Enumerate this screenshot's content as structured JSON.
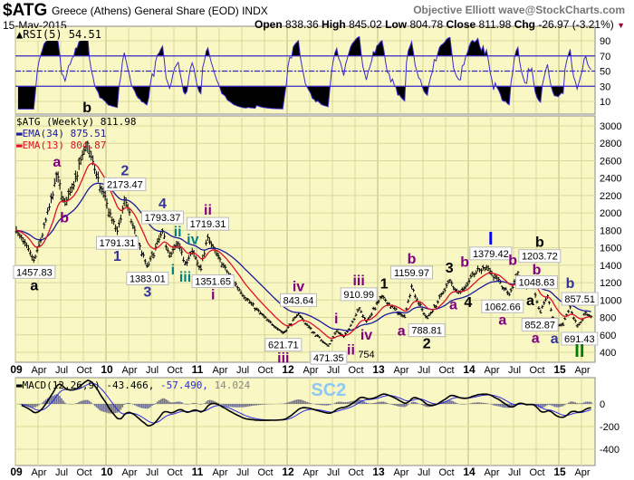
{
  "header": {
    "symbol": "$ATG",
    "name": "Greece (Athens) General Share (EOD) INDX",
    "date": "15-May-2015",
    "credit": "Objective Elliott wave@StockCharts.com",
    "open_label": "Open",
    "open": "838.36",
    "high_label": "High",
    "high": "845.02",
    "low_label": "Low",
    "low": "804.78",
    "close_label": "Close",
    "close": "811.98",
    "chg_label": "Chg",
    "chg": "-26.97 (-3.21%)",
    "down_color": "#990033"
  },
  "colors": {
    "panel_bg": "#f9f7c4",
    "grid": "#d9d89a",
    "year_grid": "#b9b87c",
    "ema34": "#1a1a9a",
    "ema13": "#e0102a",
    "rsi": "#3a2acd",
    "macd": "#000000",
    "signal": "#2a2ae0",
    "hist": "#6e6e90"
  },
  "chart_data": [
    {
      "type": "line",
      "panel": "RSI",
      "legend": "RSI(5) 54.51",
      "yticks": [
        90,
        70,
        50,
        30,
        10
      ],
      "ylim": [
        0,
        100
      ],
      "levels": [
        70,
        50,
        30
      ],
      "last": 54.51
    },
    {
      "type": "ohlc",
      "panel": "price",
      "legend": {
        "title": "$ATG (Weekly) 811.98",
        "ema34": "EMA(34) 875.51",
        "ema13": "EMA(13) 804.87"
      },
      "yticks": [
        3000,
        2800,
        2600,
        2400,
        2200,
        2000,
        1800,
        1600,
        1400,
        1200,
        1000,
        800,
        600,
        400
      ],
      "ylim": [
        330,
        3120
      ],
      "scale": "linear",
      "grid": true,
      "pivots": [
        {
          "date": "2009-01",
          "value": 1800
        },
        {
          "date": "2009-03",
          "value": 1457.83,
          "box": "1457.83",
          "label": "a",
          "color": "#000000",
          "pos": "below"
        },
        {
          "date": "2009-06",
          "value": 2450,
          "label": "a",
          "color": "#800080",
          "pos": "above"
        },
        {
          "date": "2009-07",
          "value": 2100,
          "label": "b",
          "color": "#800080",
          "pos": "below"
        },
        {
          "date": "2009-10",
          "value": 2800,
          "label": "b",
          "color": "#000000",
          "pos": "above"
        },
        {
          "date": "2010-02",
          "value": 1791.31,
          "box": "1791.31",
          "label": "1",
          "color": "#333399",
          "pos": "below"
        },
        {
          "date": "2010-03",
          "value": 2173.47,
          "box": "2173.47",
          "label": "2",
          "color": "#333399",
          "pos": "above"
        },
        {
          "date": "2010-06",
          "value": 1383.01,
          "box": "1383.01",
          "label": "3",
          "color": "#333399",
          "pos": "below"
        },
        {
          "date": "2010-08",
          "value": 1793.37,
          "box": "1793.37",
          "label": "4",
          "color": "#333399",
          "pos": "above"
        },
        {
          "date": "2010-09",
          "value": 1500,
          "label": "i",
          "color": "#008080",
          "pos": "below"
        },
        {
          "date": "2010-10",
          "value": 1650,
          "label": "ii",
          "color": "#008080",
          "pos": "above"
        },
        {
          "date": "2010-11",
          "value": 1420,
          "label": "iii",
          "color": "#008080",
          "pos": "below"
        },
        {
          "date": "2010-12",
          "value": 1560,
          "label": "iv",
          "color": "#008080",
          "pos": "above"
        },
        {
          "date": "2011-01",
          "value": 1351.65,
          "box": "1351.65",
          "label": "i",
          "color": "#800080",
          "pos": "below"
        },
        {
          "date": "2011-02",
          "value": 1719.31,
          "box": "1719.31",
          "label": "ii",
          "color": "#800080",
          "pos": "above"
        },
        {
          "date": "2011-12",
          "value": 621.71,
          "box": "621.71",
          "label": "iii",
          "color": "#800080",
          "pos": "below"
        },
        {
          "date": "2012-02",
          "value": 843.64,
          "box": "843.64",
          "label": "iv",
          "color": "#800080",
          "pos": "above"
        },
        {
          "date": "2012-06",
          "value": 471.35,
          "box": "471.35",
          "label": "SC2",
          "color": "#8ec8f4",
          "pos": "below"
        },
        {
          "date": "2012-07",
          "value": 650,
          "label": "i",
          "color": "#800080",
          "pos": "above"
        },
        {
          "date": "2012-08",
          "value": 580,
          "label": "ii",
          "color": "#800080",
          "pos": "below"
        },
        {
          "date": "2012-10",
          "value": 910.99,
          "box": "910.99",
          "label": "iii",
          "color": "#800080",
          "pos": "above"
        },
        {
          "date": "2012-11",
          "value": 754,
          "text": "754",
          "label": "iv",
          "color": "#800080",
          "pos": "below"
        },
        {
          "date": "2013-01",
          "value": 1050,
          "label": "1",
          "color": "#000000",
          "pos": "above"
        },
        {
          "date": "2013-04",
          "value": 800,
          "label": "a",
          "color": "#800080",
          "pos": "below"
        },
        {
          "date": "2013-05",
          "value": 1159.97,
          "box": "1159.97",
          "label": "b",
          "color": "#800080",
          "pos": "above"
        },
        {
          "date": "2013-07",
          "value": 788.81,
          "box": "788.81",
          "label": "2",
          "color": "#000000",
          "pos": "below"
        },
        {
          "date": "2013-10",
          "value": 1230,
          "label": "3",
          "color": "#000000",
          "pos": "above"
        },
        {
          "date": "2013-11",
          "value": 1100,
          "label": "a",
          "color": "#800080",
          "pos": "below"
        },
        {
          "date": "2013-12",
          "value": 1130,
          "label": "4",
          "color": "#000000",
          "pos": "below"
        },
        {
          "date": "2014-01",
          "value": 1300,
          "label": "b",
          "color": "#800080",
          "pos": "above"
        },
        {
          "date": "2014-03",
          "value": 1379.42,
          "box": "1379.42",
          "label": "I",
          "color": "#0000ff",
          "pos": "above"
        },
        {
          "date": "2014-06",
          "value": 1062.66,
          "box": "1062.66",
          "label": "a",
          "color": "#800080",
          "pos": "below"
        },
        {
          "date": "2014-07",
          "value": 1320,
          "label": "b",
          "color": "#800080",
          "pos": "above"
        },
        {
          "date": "2014-08",
          "value": 1150,
          "label": "a",
          "color": "#000000",
          "pos": "below"
        },
        {
          "date": "2014-09",
          "value": 1203.72,
          "box": "1203.72",
          "label": "b",
          "color": "#000000",
          "pos": "above"
        },
        {
          "date": "2014-10",
          "value": 852.87,
          "box": "852.87",
          "label": "a",
          "color": "#800080",
          "pos": "below"
        },
        {
          "date": "2014-11",
          "value": 1048.63,
          "box": "1048.63",
          "label": "b",
          "color": "#800080",
          "pos": "above"
        },
        {
          "date": "2014-12",
          "value": 720
        },
        {
          "date": "2015-01",
          "value": 710,
          "label": "a",
          "color": "#333399",
          "pos": "below"
        },
        {
          "date": "2015-02",
          "value": 920,
          "label": "b",
          "color": "#333399",
          "pos": "above"
        },
        {
          "date": "2015-03",
          "value": 691.43,
          "box": "691.43",
          "label": "II",
          "color": "#008000",
          "pos": "below"
        },
        {
          "date": "2015-04",
          "value": 857.51,
          "box": "857.51"
        },
        {
          "date": "2015-05",
          "value": 811.98
        }
      ]
    },
    {
      "type": "line",
      "panel": "MACD",
      "legend": {
        "name": "MACD(12,26,9)",
        "macd": "-43.466,",
        "signal": "-57.490,",
        "hist": "14.024"
      },
      "yticks": [
        0,
        -200,
        -400
      ],
      "ylim": [
        -540,
        240
      ]
    }
  ],
  "x_axis": {
    "labels": [
      "09",
      "Apr",
      "Jul",
      "Oct",
      "10",
      "Apr",
      "Jul",
      "Oct",
      "11",
      "Apr",
      "Jul",
      "Oct",
      "12",
      "Apr",
      "Jul",
      "Oct",
      "13",
      "Apr",
      "Jul",
      "Oct",
      "14",
      "Apr",
      "Jul",
      "Oct",
      "15",
      "Apr"
    ],
    "start": "2009-01",
    "end": "2015-05-15"
  }
}
